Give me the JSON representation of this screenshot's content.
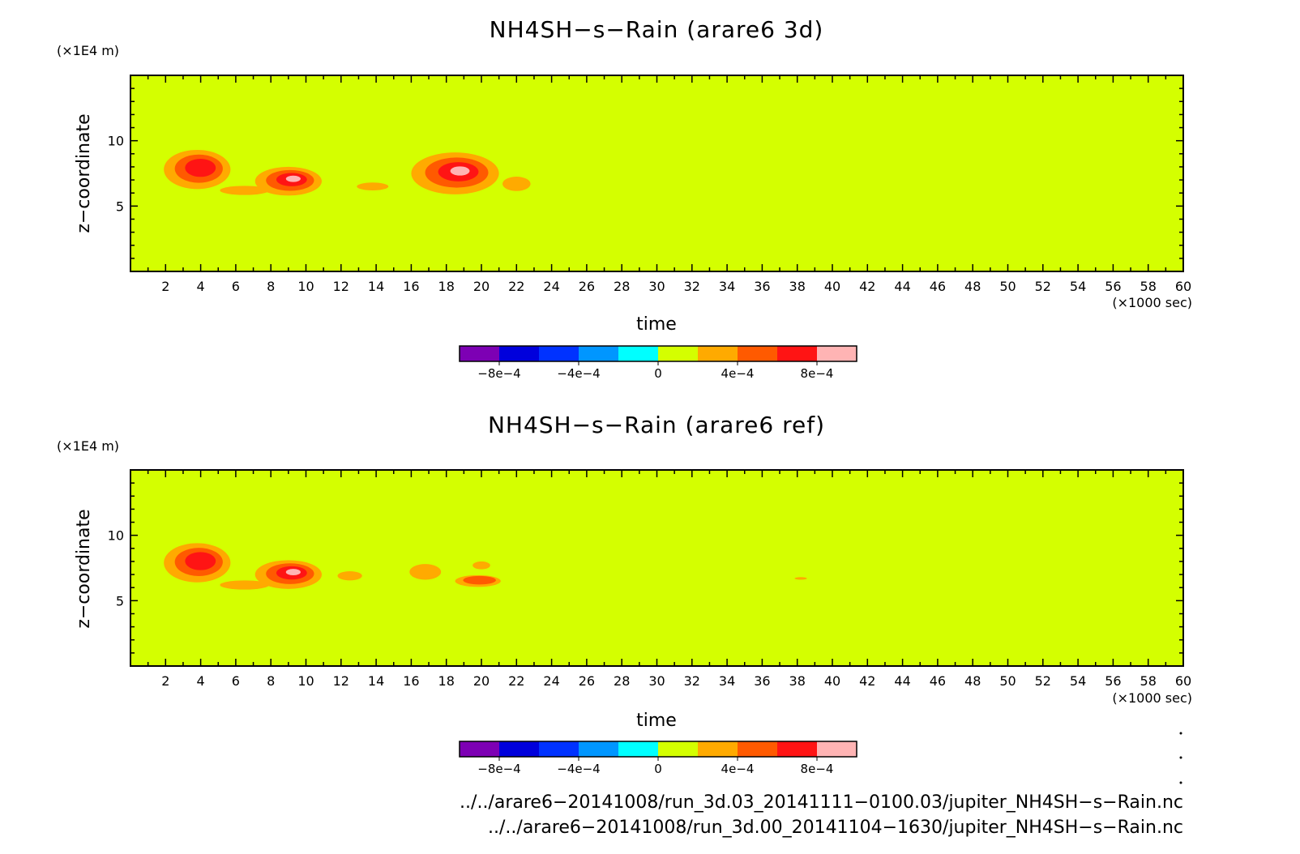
{
  "chart_data": [
    {
      "type": "contour",
      "title": "NH4SH−s−Rain (arare6 3d)",
      "xlabel": "time",
      "x_unit": "(×1000 sec)",
      "ylabel": "z−coordinate",
      "y_unit": "(×1E4 m)",
      "xlim": [
        0,
        60
      ],
      "ylim": [
        0,
        15
      ],
      "x_ticks": [
        2,
        4,
        6,
        8,
        10,
        12,
        14,
        16,
        18,
        20,
        22,
        24,
        26,
        28,
        30,
        32,
        34,
        36,
        38,
        40,
        42,
        44,
        46,
        48,
        50,
        52,
        54,
        56,
        58,
        60
      ],
      "y_ticks": [
        5,
        10
      ],
      "background_level_color": "#d4ff00",
      "blobs": [
        {
          "x": 3.8,
          "z": 7.8,
          "rx": 1.9,
          "rz": 1.5,
          "peak": 3
        },
        {
          "x": 9.0,
          "z": 6.9,
          "rx": 1.9,
          "rz": 1.1,
          "peak": 4
        },
        {
          "x": 6.5,
          "z": 6.2,
          "rx": 1.4,
          "rz": 0.35,
          "peak": 1
        },
        {
          "x": 13.8,
          "z": 6.5,
          "rx": 0.9,
          "rz": 0.3,
          "peak": 1
        },
        {
          "x": 18.5,
          "z": 7.5,
          "rx": 2.5,
          "rz": 1.6,
          "peak": 4
        },
        {
          "x": 22.0,
          "z": 6.7,
          "rx": 0.8,
          "rz": 0.55,
          "peak": 1
        }
      ]
    },
    {
      "type": "contour",
      "title": "NH4SH−s−Rain (arare6 ref)",
      "xlabel": "time",
      "x_unit": "(×1000 sec)",
      "ylabel": "z−coordinate",
      "y_unit": "(×1E4 m)",
      "xlim": [
        0,
        60
      ],
      "ylim": [
        0,
        15
      ],
      "x_ticks": [
        2,
        4,
        6,
        8,
        10,
        12,
        14,
        16,
        18,
        20,
        22,
        24,
        26,
        28,
        30,
        32,
        34,
        36,
        38,
        40,
        42,
        44,
        46,
        48,
        50,
        52,
        54,
        56,
        58,
        60
      ],
      "y_ticks": [
        5,
        10
      ],
      "background_level_color": "#d4ff00",
      "blobs": [
        {
          "x": 3.8,
          "z": 7.9,
          "rx": 1.9,
          "rz": 1.5,
          "peak": 3
        },
        {
          "x": 9.0,
          "z": 7.0,
          "rx": 1.9,
          "rz": 1.1,
          "peak": 4
        },
        {
          "x": 6.5,
          "z": 6.2,
          "rx": 1.4,
          "rz": 0.35,
          "peak": 1
        },
        {
          "x": 12.5,
          "z": 6.9,
          "rx": 0.7,
          "rz": 0.35,
          "peak": 1
        },
        {
          "x": 16.8,
          "z": 7.2,
          "rx": 0.9,
          "rz": 0.6,
          "peak": 1
        },
        {
          "x": 19.8,
          "z": 6.5,
          "rx": 1.3,
          "rz": 0.45,
          "peak": 2
        },
        {
          "x": 20.0,
          "z": 7.7,
          "rx": 0.5,
          "rz": 0.3,
          "peak": 1
        },
        {
          "x": 38.2,
          "z": 6.7,
          "rx": 0.35,
          "rz": 0.1,
          "peak": 1
        }
      ]
    }
  ],
  "colorbar": {
    "colors": [
      "#7d00b4",
      "#0000dc",
      "#0032ff",
      "#0096ff",
      "#00ffff",
      "#d4ff00",
      "#ffaa00",
      "#ff5a00",
      "#ff1414",
      "#ffb4b4"
    ],
    "tick_labels": [
      "−8e−4",
      "−4e−4",
      "0",
      "4e−4",
      "8e−4"
    ]
  },
  "level_colors": [
    "#d4ff00",
    "#ffaa00",
    "#ff5a00",
    "#ff1414",
    "#ffb4b4"
  ],
  "footer": {
    "line1": "../../arare6−20141008/run_3d.03_20141111−0100.03/jupiter_NH4SH−s−Rain.nc",
    "line2": "../../arare6−20141008/run_3d.00_20141104−1630/jupiter_NH4SH−s−Rain.nc"
  }
}
